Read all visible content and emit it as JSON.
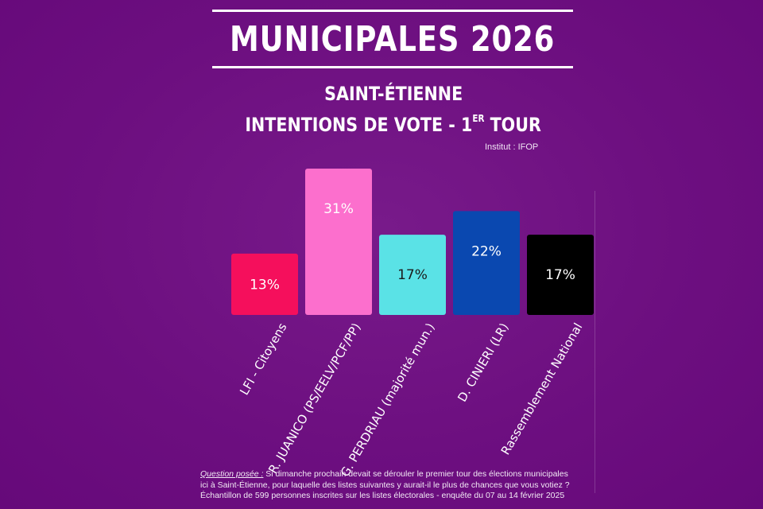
{
  "header": {
    "title": "MUNICIPALES 2026",
    "city": "SAINT-ÉTIENNE",
    "subtitle_main": "INTENTIONS DE VOTE - 1",
    "subtitle_sup": "ER",
    "subtitle_end": " TOUR",
    "source": "Institut : IFOP"
  },
  "chart_data": {
    "type": "bar",
    "categories": [
      "LFI - Citoyens",
      "R. JUANICO (PS/EELV/PCF/PP)",
      "G. PERDRIAU (majorité mun.)",
      "D. CINIERI (LR)",
      "Rassemblement National"
    ],
    "values": [
      13,
      31,
      17,
      22,
      17
    ],
    "value_labels": [
      "13%",
      "31%",
      "17%",
      "22%",
      "17%"
    ],
    "colors": [
      "#f50f5c",
      "#fc6fcd",
      "#5ae2e6",
      "#0a48b0",
      "#000000"
    ],
    "label_colors": [
      "#ffffff",
      "#ffffff",
      "#1b1b1b",
      "#ffffff",
      "#ffffff"
    ],
    "ylim": [
      0,
      31
    ],
    "grid": false,
    "legend": "none"
  },
  "footer": {
    "question_label": "Question posée :",
    "question_text": " Si dimanche prochain devait se dérouler le premier tour des élections municipales ici à Saint-Étienne, pour laquelle des listes suivantes y aurait-il le plus de chances que vous votiez ?",
    "sample": "Échantillon de 599 personnes inscrites sur les listes électorales - enquête du 07 au 14 février 2025"
  }
}
